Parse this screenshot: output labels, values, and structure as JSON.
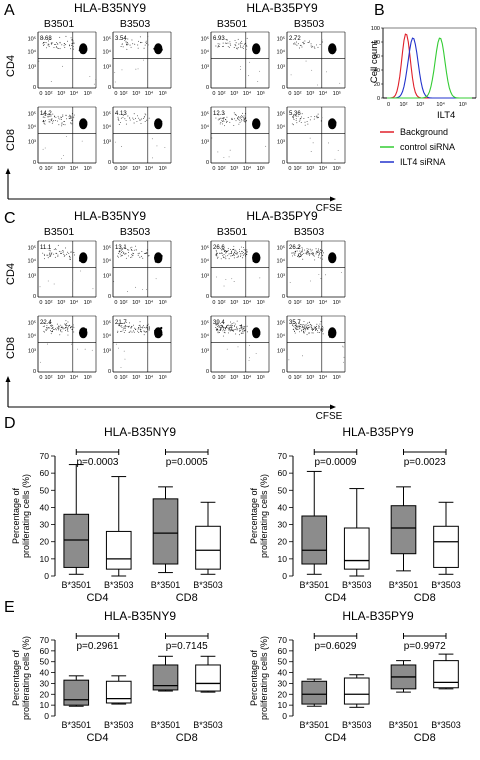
{
  "panels": {
    "A": {
      "letter": "A",
      "groups": [
        {
          "title": "HLA-B35NY9",
          "cols": [
            "B3501",
            "B3503"
          ]
        },
        {
          "title": "HLA-B35PY9",
          "cols": [
            "B3501",
            "B3503"
          ]
        }
      ],
      "rows": [
        "CD4",
        "CD8"
      ],
      "percentages": [
        [
          "8.68",
          "3.54",
          "6.93",
          "2.72"
        ],
        [
          "14.2",
          "4.13",
          "12.3",
          "5.36"
        ]
      ],
      "xaxis": "CFSE"
    },
    "B": {
      "letter": "B",
      "ylabel": "Cell count",
      "xlabel": "ILT4",
      "legend": [
        {
          "label": "Background",
          "color": "#e0202a"
        },
        {
          "label": "control siRNA",
          "color": "#33cc33"
        },
        {
          "label": "ILT4 siRNA",
          "color": "#2233cc"
        }
      ],
      "yticks": [
        "0",
        "20",
        "40",
        "60",
        "80",
        "100"
      ]
    },
    "C": {
      "letter": "C",
      "groups": [
        {
          "title": "HLA-B35NY9",
          "cols": [
            "B3501",
            "B3503"
          ]
        },
        {
          "title": "HLA-B35PY9",
          "cols": [
            "B3501",
            "B3503"
          ]
        }
      ],
      "rows": [
        "CD4",
        "CD8"
      ],
      "percentages": [
        [
          "11.1",
          "13.1",
          "26.6",
          "26.2"
        ],
        [
          "22.4",
          "21.7",
          "39.4",
          "35.7"
        ]
      ],
      "xaxis": "CFSE"
    },
    "D": {
      "letter": "D"
    },
    "E": {
      "letter": "E"
    }
  },
  "flow_ticks": [
    "0",
    "10²",
    "10³",
    "10⁴",
    "10⁵"
  ],
  "chart_data": [
    {
      "type": "box",
      "panel": "D",
      "title": "HLA-B35NY9",
      "ylabel": "Percentage of proliferating cells (%)",
      "ylim": [
        0,
        70
      ],
      "yticks": [
        0,
        10,
        20,
        30,
        40,
        50,
        60,
        70
      ],
      "groups": [
        "CD4",
        "CD8"
      ],
      "categories": [
        "B*3501",
        "B*3503",
        "B*3501",
        "B*3503"
      ],
      "series": [
        {
          "category": "B*3501",
          "group": "CD4",
          "min": 1,
          "q1": 5,
          "median": 21,
          "q3": 36,
          "max": 65
        },
        {
          "category": "B*3503",
          "group": "CD4",
          "min": 0,
          "q1": 4,
          "median": 10,
          "q3": 26,
          "max": 58
        },
        {
          "category": "B*3501",
          "group": "CD8",
          "min": 2,
          "q1": 7,
          "median": 25,
          "q3": 45,
          "max": 52
        },
        {
          "category": "B*3503",
          "group": "CD8",
          "min": 1,
          "q1": 4,
          "median": 15,
          "q3": 29,
          "max": 43
        }
      ],
      "pvalues": [
        "p=0.0003",
        "p=0.0005"
      ]
    },
    {
      "type": "box",
      "panel": "D",
      "title": "HLA-B35PY9",
      "ylabel": "Percentage of proliferating cells (%)",
      "ylim": [
        0,
        70
      ],
      "yticks": [
        0,
        10,
        20,
        30,
        40,
        50,
        60,
        70
      ],
      "groups": [
        "CD4",
        "CD8"
      ],
      "categories": [
        "B*3501",
        "B*3503",
        "B*3501",
        "B*3503"
      ],
      "series": [
        {
          "category": "B*3501",
          "group": "CD4",
          "min": 1,
          "q1": 7,
          "median": 15,
          "q3": 35,
          "max": 61
        },
        {
          "category": "B*3503",
          "group": "CD4",
          "min": 0,
          "q1": 4,
          "median": 9,
          "q3": 28,
          "max": 51
        },
        {
          "category": "B*3501",
          "group": "CD8",
          "min": 3,
          "q1": 13,
          "median": 28,
          "q3": 41,
          "max": 52
        },
        {
          "category": "B*3503",
          "group": "CD8",
          "min": 1,
          "q1": 5,
          "median": 20,
          "q3": 29,
          "max": 43
        }
      ],
      "pvalues": [
        "p=0.0009",
        "p=0.0023"
      ]
    },
    {
      "type": "box",
      "panel": "E",
      "title": "HLA-B35NY9",
      "ylabel": "Percentage of proliferating cells (%)",
      "ylim": [
        0,
        70
      ],
      "yticks": [
        0,
        10,
        20,
        30,
        40,
        50,
        60,
        70
      ],
      "groups": [
        "CD4",
        "CD8"
      ],
      "categories": [
        "B*3501",
        "B*3503",
        "B*3501",
        "B*3503"
      ],
      "series": [
        {
          "category": "B*3501",
          "group": "CD4",
          "min": 9,
          "q1": 10,
          "median": 15,
          "q3": 33,
          "max": 37
        },
        {
          "category": "B*3503",
          "group": "CD4",
          "min": 11,
          "q1": 12,
          "median": 16,
          "q3": 32,
          "max": 37
        },
        {
          "category": "B*3501",
          "group": "CD8",
          "min": 23,
          "q1": 24,
          "median": 28,
          "q3": 47,
          "max": 55
        },
        {
          "category": "B*3503",
          "group": "CD8",
          "min": 22,
          "q1": 23,
          "median": 30,
          "q3": 47,
          "max": 55
        }
      ],
      "pvalues": [
        "p=0.2961",
        "p=0.7145"
      ]
    },
    {
      "type": "box",
      "panel": "E",
      "title": "HLA-B35PY9",
      "ylabel": "Percentage of proliferating cells (%)",
      "ylim": [
        0,
        70
      ],
      "yticks": [
        0,
        10,
        20,
        30,
        40,
        50,
        60,
        70
      ],
      "groups": [
        "CD4",
        "CD8"
      ],
      "categories": [
        "B*3501",
        "B*3503",
        "B*3501",
        "B*3503"
      ],
      "series": [
        {
          "category": "B*3501",
          "group": "CD4",
          "min": 9,
          "q1": 11,
          "median": 20,
          "q3": 32,
          "max": 34
        },
        {
          "category": "B*3503",
          "group": "CD4",
          "min": 8,
          "q1": 11,
          "median": 20,
          "q3": 35,
          "max": 38
        },
        {
          "category": "B*3501",
          "group": "CD8",
          "min": 22,
          "q1": 25,
          "median": 36,
          "q3": 47,
          "max": 51
        },
        {
          "category": "B*3503",
          "group": "CD8",
          "min": 25,
          "q1": 26,
          "median": 31,
          "q3": 51,
          "max": 57
        }
      ],
      "pvalues": [
        "p=0.6029",
        "p=0.9972"
      ]
    }
  ]
}
